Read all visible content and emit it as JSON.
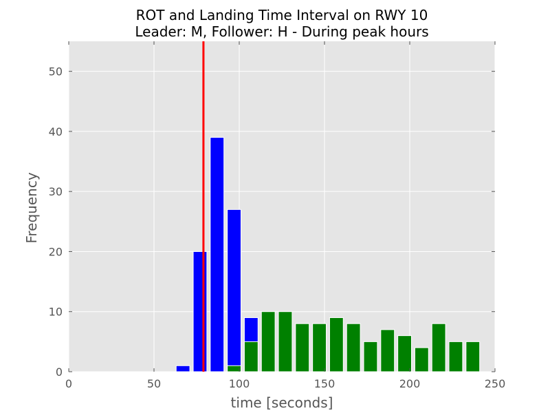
{
  "chart_data": {
    "type": "bar",
    "title_lines": [
      "ROT and Landing Time Interval on RWY 10",
      "Leader: M, Follower: H - During peak hours"
    ],
    "xlabel": "time [seconds]",
    "ylabel": "Frequency",
    "xlim": [
      0,
      250
    ],
    "ylim": [
      0,
      55
    ],
    "xticks": [
      0,
      50,
      100,
      150,
      200,
      250
    ],
    "yticks": [
      0,
      10,
      20,
      30,
      40,
      50
    ],
    "grid": true,
    "background": "#e5e5e5",
    "series": [
      {
        "color": "#0000ff",
        "bin_width": 8,
        "bins": [
          {
            "x": 63,
            "value": 1
          },
          {
            "x": 73,
            "value": 20
          },
          {
            "x": 83,
            "value": 39
          },
          {
            "x": 93,
            "value": 27
          },
          {
            "x": 103,
            "value": 9
          }
        ]
      },
      {
        "color": "#008000",
        "bin_width": 8,
        "bins": [
          {
            "x": 93,
            "value": 1
          },
          {
            "x": 103,
            "value": 5
          },
          {
            "x": 113,
            "value": 10
          },
          {
            "x": 123,
            "value": 10
          },
          {
            "x": 133,
            "value": 8
          },
          {
            "x": 143,
            "value": 8
          },
          {
            "x": 153,
            "value": 9
          },
          {
            "x": 163,
            "value": 8
          },
          {
            "x": 173,
            "value": 5
          },
          {
            "x": 183,
            "value": 7
          },
          {
            "x": 193,
            "value": 6
          },
          {
            "x": 203,
            "value": 4
          },
          {
            "x": 213,
            "value": 8
          },
          {
            "x": 223,
            "value": 5
          },
          {
            "x": 233,
            "value": 5
          }
        ]
      }
    ],
    "reference_line": {
      "x": 79,
      "color": "#ff0000"
    }
  }
}
